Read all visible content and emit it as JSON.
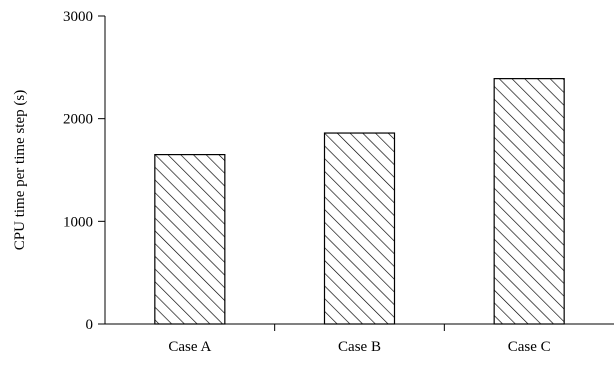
{
  "chart_data": {
    "type": "bar",
    "title": "",
    "xlabel": "",
    "ylabel": "CPU time per time step (s)",
    "categories": [
      "Case A",
      "Case B",
      "Case C"
    ],
    "values": [
      1650,
      1860,
      2390
    ],
    "ylim": [
      0,
      3000
    ],
    "yticks": [
      0,
      1000,
      2000,
      3000
    ],
    "grid": false,
    "legend": "none",
    "bar_fill": "diagonal-hatch",
    "colors": {
      "axis": "#000000",
      "bar_edge": "#000000",
      "hatch": "#000000",
      "background": "#ffffff"
    }
  }
}
